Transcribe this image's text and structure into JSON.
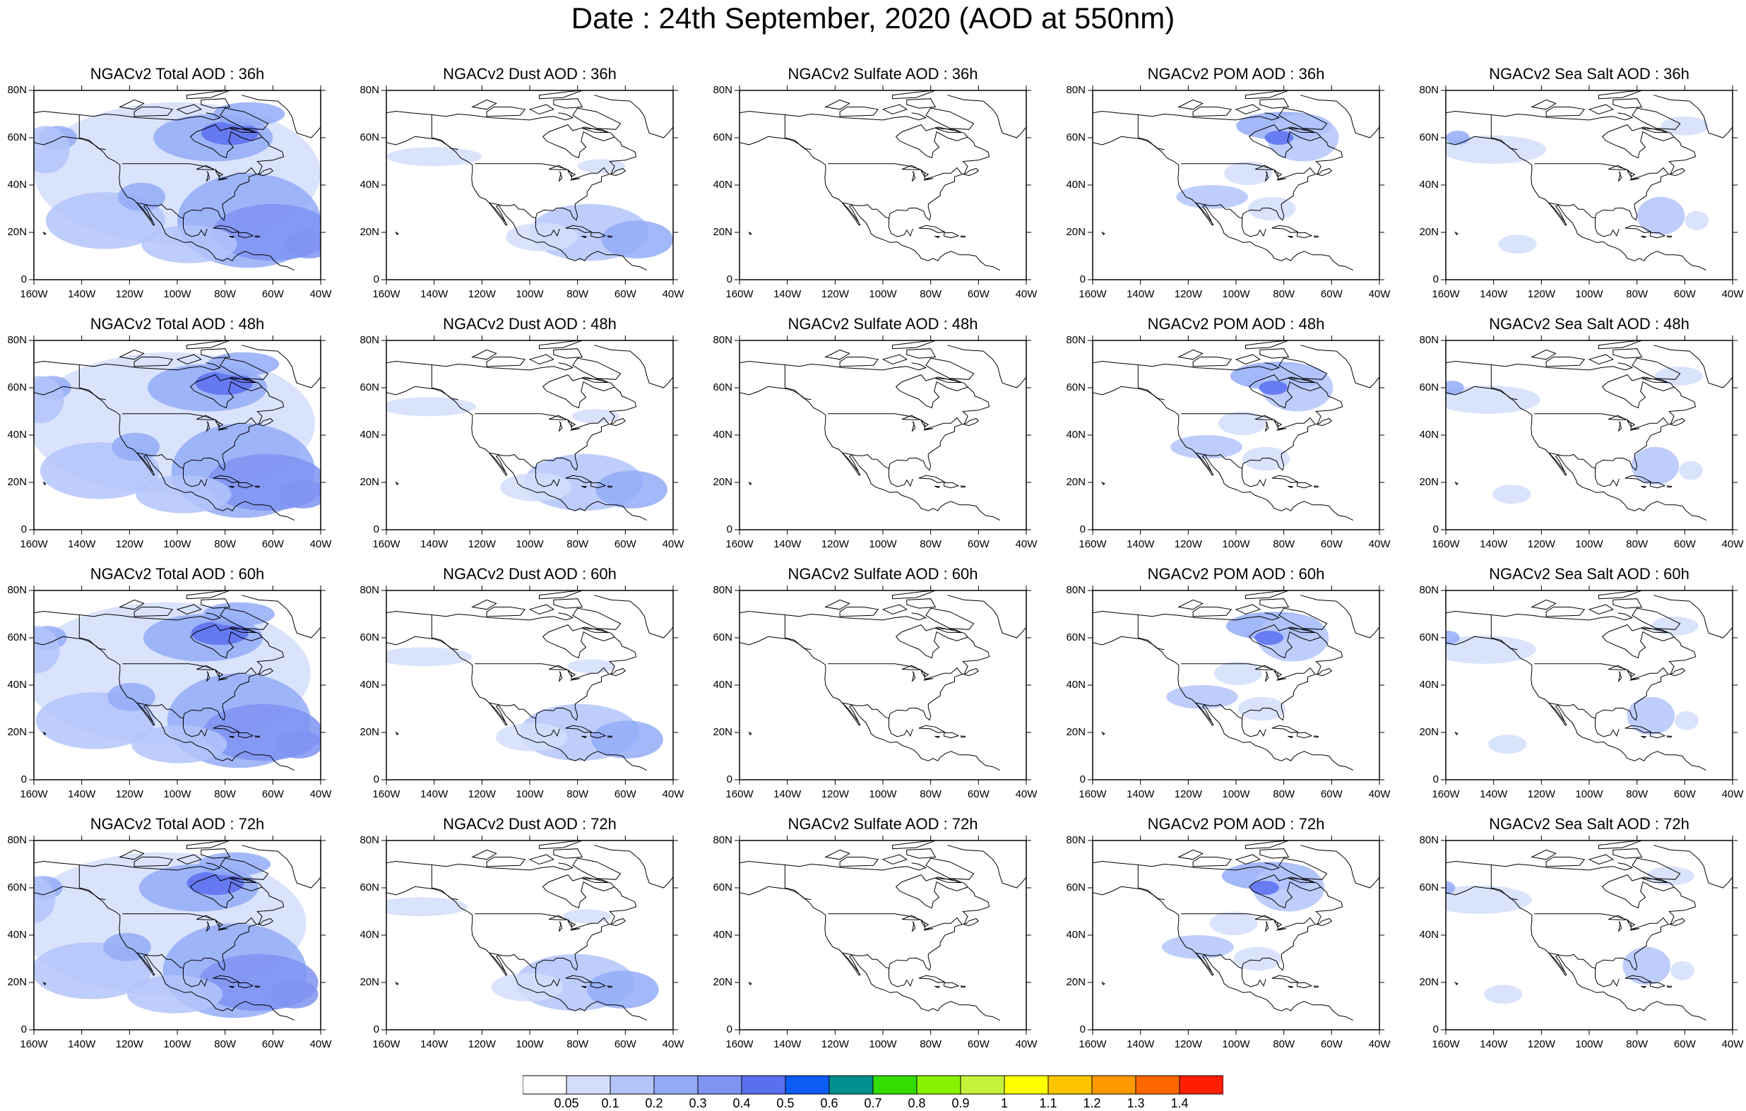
{
  "figure": {
    "title": "Date : 24th September, 2020 (AOD at 550nm)"
  },
  "lat_ticks": [
    "80N",
    "60N",
    "40N",
    "20N",
    "0"
  ],
  "lon_ticks": [
    "160W",
    "140W",
    "120W",
    "100W",
    "80W",
    "60W",
    "40W"
  ],
  "panels": [
    {
      "title": "NGACv2 Total AOD : 36h",
      "species": "total",
      "hour": 36
    },
    {
      "title": "NGACv2 Dust AOD : 36h",
      "species": "dust",
      "hour": 36
    },
    {
      "title": "NGACv2 Sulfate AOD : 36h",
      "species": "sulfate",
      "hour": 36
    },
    {
      "title": "NGACv2 POM AOD : 36h",
      "species": "pom",
      "hour": 36
    },
    {
      "title": "NGACv2 Sea Salt AOD : 36h",
      "species": "seasalt",
      "hour": 36
    },
    {
      "title": "NGACv2 Total AOD : 48h",
      "species": "total",
      "hour": 48
    },
    {
      "title": "NGACv2 Dust AOD : 48h",
      "species": "dust",
      "hour": 48
    },
    {
      "title": "NGACv2 Sulfate AOD : 48h",
      "species": "sulfate",
      "hour": 48
    },
    {
      "title": "NGACv2 POM AOD : 48h",
      "species": "pom",
      "hour": 48
    },
    {
      "title": "NGACv2 Sea Salt AOD : 48h",
      "species": "seasalt",
      "hour": 48
    },
    {
      "title": "NGACv2 Total AOD : 60h",
      "species": "total",
      "hour": 60
    },
    {
      "title": "NGACv2 Dust AOD : 60h",
      "species": "dust",
      "hour": 60
    },
    {
      "title": "NGACv2 Sulfate AOD : 60h",
      "species": "sulfate",
      "hour": 60
    },
    {
      "title": "NGACv2 POM AOD : 60h",
      "species": "pom",
      "hour": 60
    },
    {
      "title": "NGACv2 Sea Salt AOD : 60h",
      "species": "seasalt",
      "hour": 60
    },
    {
      "title": "NGACv2 Total AOD : 72h",
      "species": "total",
      "hour": 72
    },
    {
      "title": "NGACv2 Dust AOD : 72h",
      "species": "dust",
      "hour": 72
    },
    {
      "title": "NGACv2 Sulfate AOD : 72h",
      "species": "sulfate",
      "hour": 72
    },
    {
      "title": "NGACv2 POM AOD : 72h",
      "species": "pom",
      "hour": 72
    },
    {
      "title": "NGACv2 Sea Salt  AOD : 72h",
      "species": "seasalt",
      "hour": 72
    }
  ],
  "colorbar": {
    "labels": [
      "0.05",
      "0.1",
      "0.2",
      "0.3",
      "0.4",
      "0.5",
      "0.6",
      "0.7",
      "0.8",
      "0.9",
      "1",
      "1.1",
      "1.2",
      "1.3",
      "1.4"
    ],
    "colors": [
      "#ffffff",
      "#d4defc",
      "#b3c4fa",
      "#93abf7",
      "#7f93f2",
      "#5a6ff0",
      "#0a5cf5",
      "#00908e",
      "#33dd00",
      "#88f200",
      "#c4f23a",
      "#ffff00",
      "#ffc400",
      "#ff9900",
      "#ff6600",
      "#ff1e00"
    ]
  }
}
